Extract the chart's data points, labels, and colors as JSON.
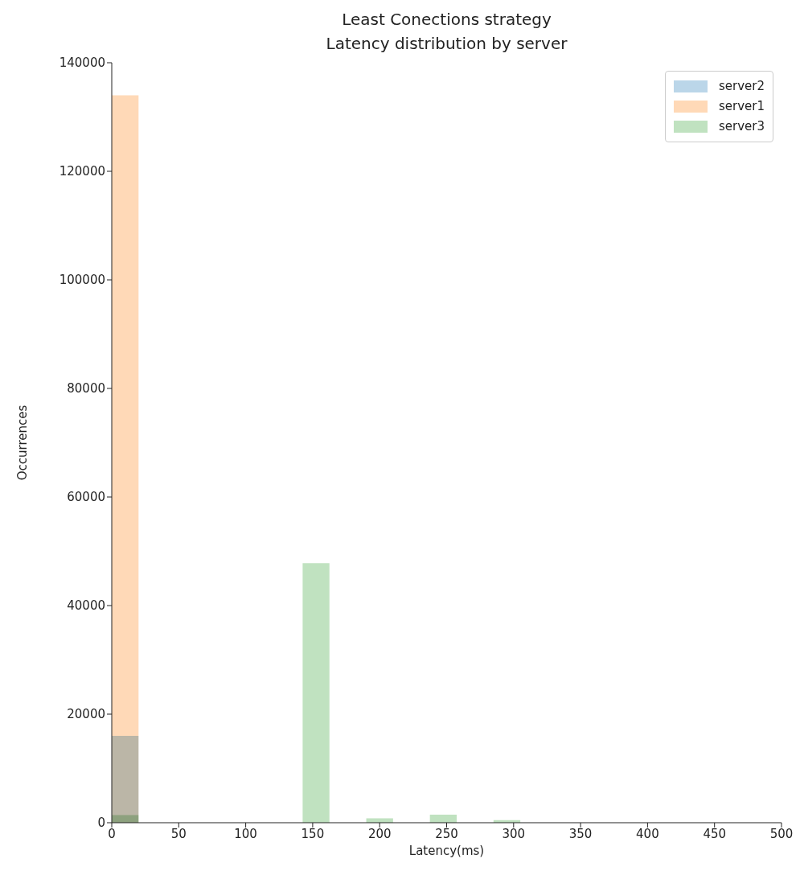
{
  "chart_data": {
    "type": "histogram",
    "title": "Least Conections strategy",
    "subtitle": "Latency distribution by server",
    "xlabel": "Latency(ms)",
    "ylabel": "Occurrences",
    "bins": [
      0,
      20,
      142.5,
      162.5,
      190,
      210,
      237.5,
      257.5,
      285,
      305
    ],
    "series": [
      {
        "name": "server2",
        "color": "#bbd6e9",
        "values": [
          16000,
          0,
          0,
          0,
          0,
          0,
          0,
          0,
          0
        ]
      },
      {
        "name": "server1",
        "color": "#ffd9b7",
        "values": [
          134000,
          0,
          0,
          0,
          0,
          0,
          0,
          0,
          0
        ]
      },
      {
        "name": "server3",
        "color": "#c0e2c0",
        "values": [
          1400,
          0,
          47800,
          0,
          800,
          0,
          1500,
          0,
          500
        ]
      }
    ],
    "xlim": [
      0,
      500
    ],
    "xticks": [
      0,
      50,
      100,
      150,
      200,
      250,
      300,
      350,
      400,
      450,
      500
    ],
    "ylim": [
      0,
      140000
    ],
    "yticks": [
      0,
      20000,
      40000,
      60000,
      80000,
      100000,
      120000,
      140000
    ],
    "legend": "top right"
  }
}
